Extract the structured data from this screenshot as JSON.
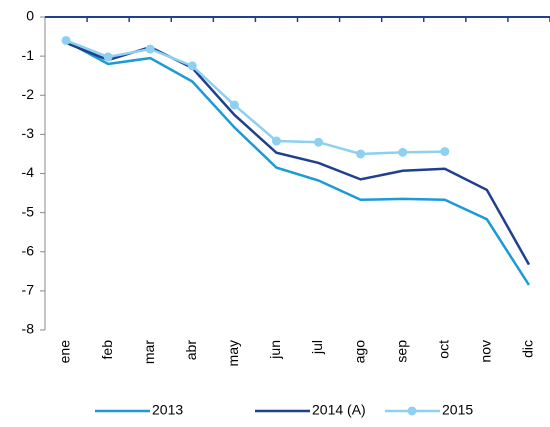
{
  "chart_data": {
    "type": "line",
    "categories": [
      "ene",
      "feb",
      "mar",
      "abr",
      "may",
      "jun",
      "jul",
      "ago",
      "sep",
      "oct",
      "nov",
      "dic"
    ],
    "series": [
      {
        "name": "2013",
        "color": "#1a9bd7",
        "marker": false,
        "values": [
          -0.62,
          -1.2,
          -1.05,
          -1.65,
          -2.82,
          -3.85,
          -4.18,
          -4.67,
          -4.65,
          -4.67,
          -5.17,
          -6.85
        ]
      },
      {
        "name": "2014 (A)",
        "color": "#1f3f8f",
        "marker": false,
        "values": [
          -0.66,
          -1.1,
          -0.77,
          -1.3,
          -2.5,
          -3.47,
          -3.73,
          -4.15,
          -3.93,
          -3.88,
          -4.42,
          -6.33
        ]
      },
      {
        "name": "2015",
        "color": "#8dd0ef",
        "marker": true,
        "values": [
          -0.6,
          -1.02,
          -0.82,
          -1.25,
          -2.25,
          -3.17,
          -3.2,
          -3.5,
          -3.46,
          -3.44,
          null,
          null
        ]
      }
    ],
    "ylim": [
      -8,
      0
    ],
    "yticks": [
      -8,
      -7,
      -6,
      -5,
      -4,
      -3,
      -2,
      -1,
      0
    ],
    "grid": false
  }
}
